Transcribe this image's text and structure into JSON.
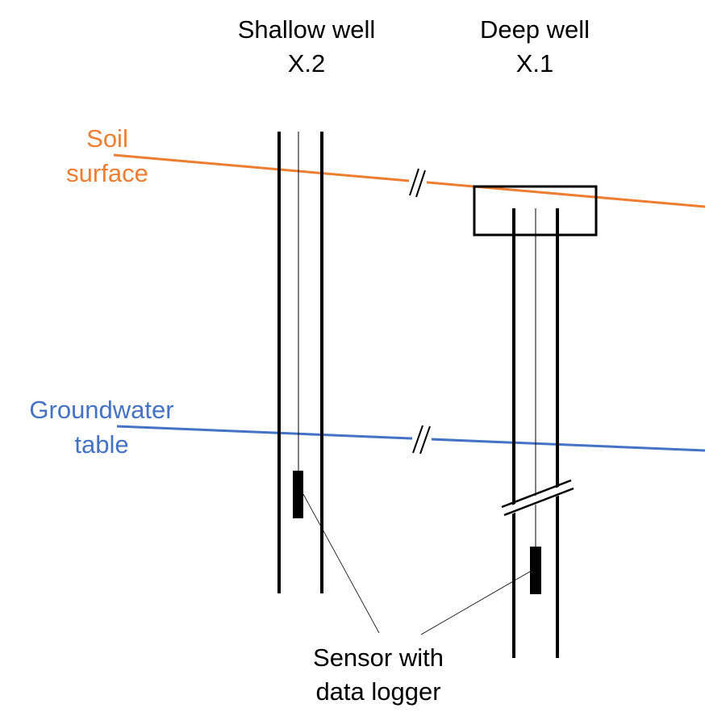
{
  "wells": {
    "shallow": {
      "name": "Shallow well",
      "id": "X.2"
    },
    "deep": {
      "name": "Deep well",
      "id": "X.1"
    }
  },
  "soil_surface": {
    "line1": "Soil",
    "line2": "surface",
    "color": "#ED7D31"
  },
  "groundwater_table": {
    "line1": "Groundwater",
    "line2": "table",
    "color": "#4472C4"
  },
  "sensor_label": {
    "line1": "Sensor with",
    "line2": "data logger"
  },
  "line_color": "#000000"
}
